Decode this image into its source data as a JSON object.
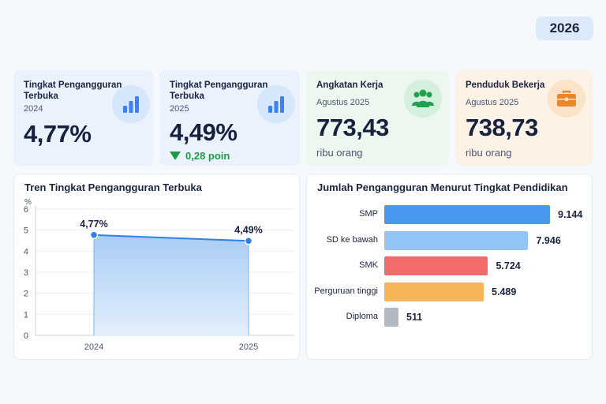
{
  "header": {
    "year": "2026"
  },
  "cards": [
    {
      "title": "Tingkat Pengangguran Terbuka",
      "sub": "2024",
      "value": "4,77%",
      "icon": "bar-chart-icon",
      "color": "#3b82f6"
    },
    {
      "title": "Tingkat Pengangguran Terbuka",
      "sub": "2025",
      "value": "4,49%",
      "delta": "0,28 poin",
      "icon": "bar-chart-icon",
      "color": "#3b82f6"
    },
    {
      "title": "Angkatan Kerja",
      "sub": "Agustus 2025",
      "value": "773,43",
      "unit": "ribu orang",
      "icon": "people-icon",
      "color": "#22a052"
    },
    {
      "title": "Penduduk Bekerja",
      "sub": "Agustus 2025",
      "value": "738,73",
      "unit": "ribu orang",
      "icon": "briefcase-icon",
      "color": "#f0842c"
    }
  ],
  "trend": {
    "title": "Tren Tingkat Pengangguran Terbuka",
    "chart_data": {
      "type": "area",
      "ylabel": "%",
      "ylim": [
        0,
        6
      ],
      "yticks": [
        "0",
        "1",
        "2",
        "3",
        "4",
        "5",
        "6"
      ],
      "categories": [
        "2024",
        "2025"
      ],
      "values": [
        4.77,
        4.49
      ],
      "data_labels": [
        "4,77%",
        "4,49%"
      ],
      "color": "#2f80e8"
    }
  },
  "education": {
    "title": "Jumlah Pengangguran Menurut Tingkat Pendidikan",
    "chart_data": {
      "type": "bar",
      "orientation": "horizontal",
      "categories": [
        "SMP",
        "SD ke bawah",
        "SMK",
        "Perguruan tinggi",
        "Diploma"
      ],
      "values": [
        9144,
        7946,
        5724,
        5489,
        511
      ],
      "data_labels": [
        "9.144",
        "7.946",
        "5.724",
        "5.489",
        "511"
      ],
      "colors": [
        "#4a97f0",
        "#93c4f6",
        "#f36a6a",
        "#f8b458",
        "#b1b8c4"
      ]
    }
  }
}
